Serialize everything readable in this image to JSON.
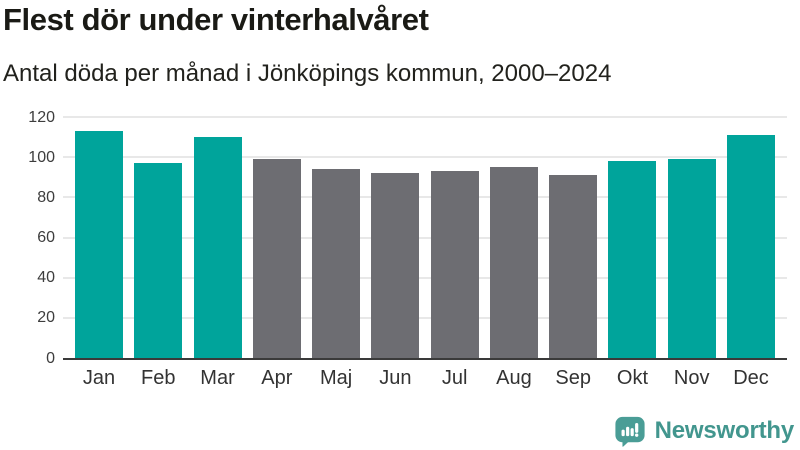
{
  "header": {
    "title": "Flest dör under vinterhalvåret",
    "subtitle": "Antal döda per månad i Jönköpings kommun, 2000–2024"
  },
  "chart_data": {
    "type": "bar",
    "title": "Flest dör under vinterhalvåret",
    "subtitle": "Antal döda per månad i Jönköpings kommun, 2000–2024",
    "categories": [
      "Jan",
      "Feb",
      "Mar",
      "Apr",
      "Maj",
      "Jun",
      "Jul",
      "Aug",
      "Sep",
      "Okt",
      "Nov",
      "Dec"
    ],
    "values": [
      113,
      97,
      110,
      99,
      94,
      92,
      93,
      95,
      91,
      98,
      99,
      111
    ],
    "bar_groups": [
      "winter",
      "winter",
      "winter",
      "summer",
      "summer",
      "summer",
      "summer",
      "summer",
      "summer",
      "winter",
      "winter",
      "winter"
    ],
    "group_colors": {
      "winter": "#00A49B",
      "summer": "#6D6D72"
    },
    "xlabel": "",
    "ylabel": "",
    "ylim": [
      0,
      120
    ],
    "yticks": [
      0,
      20,
      40,
      60,
      80,
      100,
      120
    ],
    "grid": true,
    "legend_position": "none"
  },
  "branding": {
    "logo_text": "Newsworthy",
    "logo_icon": "newsworthy-speech-bubble-bar-chart-icon",
    "brand_color": "#42968E"
  },
  "colors": {
    "background": "#FFFFFF",
    "title_text": "#1A1A15",
    "subtitle_text": "#22221D",
    "tick_labels": "#3D3D3D",
    "gridline": "#E8E8E8",
    "axis_line": "#3A3A3A",
    "bar_winter": "#00A49B",
    "bar_summer": "#6D6D72"
  }
}
